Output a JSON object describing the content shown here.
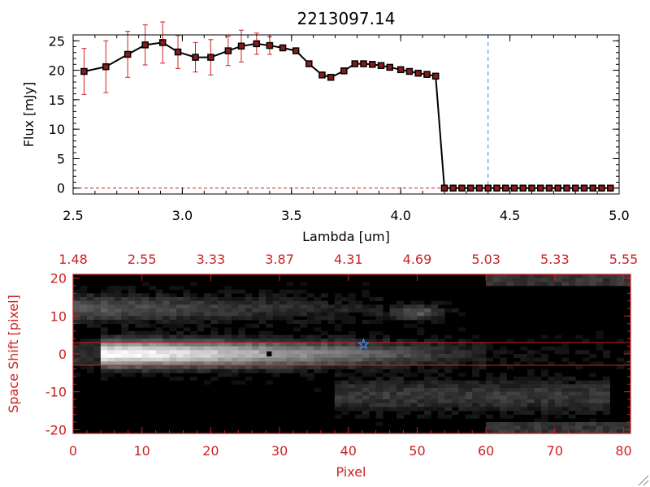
{
  "colors": {
    "red": "#cc2222",
    "black": "#000000",
    "blue_dashed": "#3b82f6",
    "marker_fill": "#8b1a1a",
    "star": "#4a7fd6"
  },
  "chart_data": [
    {
      "type": "line",
      "title": "2213097.14",
      "xlabel": "Lambda [um]",
      "ylabel": "Flux [mJy]",
      "xlim": [
        2.5,
        5.0
      ],
      "ylim": [
        -1,
        26
      ],
      "x_ticks": [
        2.5,
        3.0,
        3.5,
        4.0,
        4.5,
        5.0
      ],
      "x_tick_labels": [
        "2.5",
        "3.0",
        "3.5",
        "4.0",
        "4.5",
        "5.0"
      ],
      "y_ticks": [
        0,
        5,
        10,
        15,
        20,
        25
      ],
      "y_tick_labels": [
        "0",
        "5",
        "10",
        "15",
        "20",
        "25"
      ],
      "reference_line_x": 4.4,
      "series": [
        {
          "x": [
            2.55,
            2.65,
            2.75,
            2.83,
            2.91,
            2.98,
            3.06,
            3.13,
            3.21,
            3.27,
            3.34,
            3.4,
            3.46,
            3.52,
            3.58,
            3.64,
            3.68,
            3.74,
            3.79,
            3.83,
            3.87,
            3.91,
            3.95,
            4.0,
            4.04,
            4.08,
            4.12,
            4.16,
            4.2,
            4.24,
            4.28,
            4.32,
            4.36,
            4.4,
            4.44,
            4.48,
            4.52,
            4.56,
            4.6,
            4.64,
            4.68,
            4.72,
            4.76,
            4.8,
            4.84,
            4.88,
            4.92,
            4.96
          ],
          "y": [
            19.8,
            20.6,
            22.7,
            24.3,
            24.7,
            23.1,
            22.2,
            22.2,
            23.3,
            24.1,
            24.5,
            24.2,
            23.8,
            23.3,
            21.1,
            19.2,
            18.8,
            19.9,
            21.1,
            21.1,
            21.0,
            20.8,
            20.5,
            20.1,
            19.8,
            19.5,
            19.3,
            19.0,
            0,
            0,
            0,
            0,
            0,
            0,
            0,
            0,
            0,
            0,
            0,
            0,
            0,
            0,
            0,
            0,
            0,
            0,
            0,
            0
          ],
          "yerr": [
            3.9,
            4.4,
            3.9,
            3.4,
            3.5,
            2.8,
            2.5,
            3.0,
            2.5,
            2.7,
            1.8,
            1.5,
            0.5,
            0.4,
            0.3,
            0.3,
            0.3,
            0.3,
            0.2,
            0.2,
            0.2,
            0.2,
            0.2,
            0.2,
            0.2,
            0.2,
            0.2,
            0.2,
            0,
            0,
            0,
            0,
            0,
            0,
            0,
            0,
            0,
            0,
            0,
            0,
            0,
            0,
            0,
            0,
            0,
            0,
            0,
            0
          ]
        }
      ]
    },
    {
      "type": "heatmap",
      "xlabel": "Pixel",
      "ylabel": "Space Shift [pixel]",
      "xlim": [
        0,
        81
      ],
      "ylim": [
        -21,
        21
      ],
      "x_ticks": [
        0,
        10,
        20,
        30,
        40,
        50,
        60,
        70,
        80
      ],
      "x_tick_labels": [
        "0",
        "10",
        "20",
        "30",
        "40",
        "50",
        "60",
        "70",
        "80"
      ],
      "y_ticks": [
        -20,
        -10,
        0,
        10,
        20
      ],
      "y_tick_labels": [
        "-20",
        "-10",
        "0",
        "10",
        "20"
      ],
      "top_axis_ticks": [
        0,
        10,
        20,
        30,
        40,
        50,
        60,
        70,
        80
      ],
      "top_axis_labels": [
        "1.48",
        "2.55",
        "3.33",
        "3.87",
        "4.31",
        "4.69",
        "5.03",
        "5.33",
        "5.55"
      ],
      "extraction_aperture_y": [
        -3,
        3
      ],
      "black_marker": {
        "x": 28.5,
        "y": 0
      },
      "blue_star": {
        "x": 42.2,
        "y": 2.5
      },
      "colormap": "grayscale",
      "features": [
        {
          "desc": "main trace",
          "y_center": 0,
          "x_peak": 9,
          "x_end": 60
        },
        {
          "desc": "upper faint trace",
          "y_center": 12,
          "x_end": 45
        },
        {
          "desc": "upper blob",
          "x": 50,
          "y": 11
        },
        {
          "desc": "lower faint region",
          "y_center": -11,
          "x_start": 40,
          "x_end": 75
        }
      ]
    }
  ]
}
